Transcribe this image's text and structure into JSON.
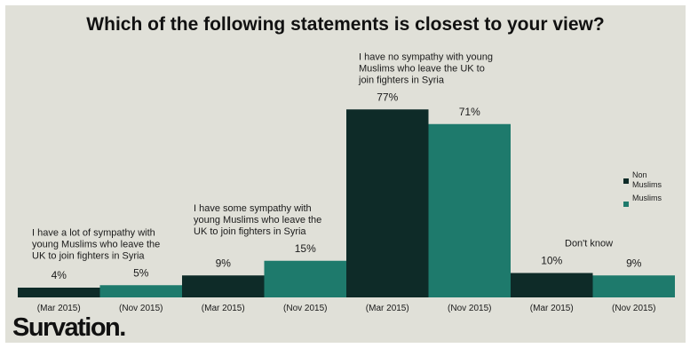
{
  "brand": "Survation.",
  "chart_data": {
    "type": "bar",
    "title": "Which of the following statements is closest to your view?",
    "xlabel": "",
    "ylabel": "",
    "ylim": [
      0,
      100
    ],
    "grid": false,
    "legend_position": "right",
    "colors": {
      "non_muslims": "#0e2b28",
      "muslims": "#1e7a6c"
    },
    "series_legend": [
      {
        "key": "non_muslims",
        "label_lines": [
          "Non",
          "Muslims"
        ]
      },
      {
        "key": "muslims",
        "label_lines": [
          "Muslims"
        ]
      }
    ],
    "groups": [
      {
        "label_lines": [
          "I have a lot of sympathy with",
          "young Muslims who leave the",
          "UK to join fighters in Syria"
        ],
        "bars": [
          {
            "tick": "(Mar 2015)",
            "value": 4,
            "value_label": "4%",
            "series": "non_muslims"
          },
          {
            "tick": "(Nov 2015)",
            "value": 5,
            "value_label": "5%",
            "series": "muslims"
          }
        ]
      },
      {
        "label_lines": [
          "I have some sympathy with",
          "young Muslims who leave the",
          "UK to join fighters in Syria"
        ],
        "bars": [
          {
            "tick": "(Mar 2015)",
            "value": 9,
            "value_label": "9%",
            "series": "non_muslims"
          },
          {
            "tick": "(Nov 2015)",
            "value": 15,
            "value_label": "15%",
            "series": "muslims"
          }
        ]
      },
      {
        "label_lines": [
          "I have no sympathy with young",
          "Muslims who leave the UK to",
          "join fighters in Syria"
        ],
        "bars": [
          {
            "tick": "(Mar 2015)",
            "value": 77,
            "value_label": "77%",
            "series": "non_muslims"
          },
          {
            "tick": "(Nov 2015)",
            "value": 71,
            "value_label": "71%",
            "series": "muslims"
          }
        ]
      },
      {
        "label_lines": [
          "Don't know"
        ],
        "bars": [
          {
            "tick": "(Mar 2015)",
            "value": 10,
            "value_label": "10%",
            "series": "non_muslims"
          },
          {
            "tick": "(Nov 2015)",
            "value": 9,
            "value_label": "9%",
            "series": "muslims"
          }
        ]
      }
    ]
  }
}
